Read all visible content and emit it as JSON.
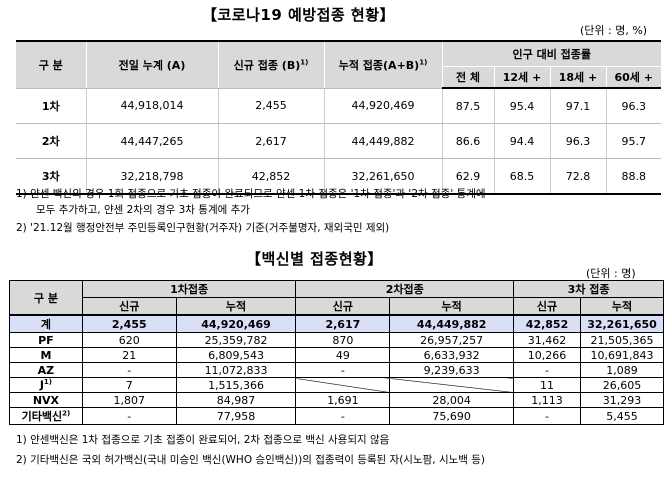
{
  "title1": "【코로나19 예방접종 현황】",
  "unit1": "(단위 : 명, %)",
  "table1": {
    "col_category": "구 분",
    "col_prev": "전일 누계 (A)",
    "col_new": "신규 접종 (B)",
    "col_new_sup": "1)",
    "col_cum": "누적 접종(A+B)",
    "col_cum_sup": "1)",
    "col_ratio": "인구 대비 접종률",
    "sub_all": "전 체",
    "sub_12": "12세 +",
    "sub_18": "18세 +",
    "sub_60": "60세 +",
    "rows": [
      {
        "label": "1차",
        "prev": "44,918,014",
        "new": "2,455",
        "cum": "44,920,469",
        "all": "87.5",
        "a12": "95.4",
        "a18": "97.1",
        "a60": "96.3"
      },
      {
        "label": "2차",
        "prev": "44,447,265",
        "new": "2,617",
        "cum": "44,449,882",
        "all": "86.6",
        "a12": "94.4",
        "a18": "96.3",
        "a60": "95.7"
      },
      {
        "label": "3차",
        "prev": "32,218,798",
        "new": "42,852",
        "cum": "32,261,650",
        "all": "62.9",
        "a12": "68.5",
        "a18": "72.8",
        "a60": "88.8"
      }
    ]
  },
  "notes1": {
    "n1": "1) 얀센 백신의 경우 1회 접종으로 기초 접종이 완료되므로 얀센 1차 접종은 '1차 접종'과 '2차 접종' 통계에",
    "n1b": "모두 추가하고, 얀센 2차의 경우 3차 통계에 추가",
    "n2": "2) '21.12월 행정안전부 주민등록인구현황(거주자) 기준(거주불명자, 재외국민 제외)"
  },
  "title2": "【백신별 접종현황】",
  "unit2": "(단위 : 명)",
  "table2": {
    "col_category": "구 분",
    "dose1": "1차접종",
    "dose2": "2차접종",
    "dose3": "3차 접종",
    "new": "신규",
    "cum": "누적",
    "total": {
      "label": "계",
      "d1n": "2,455",
      "d1c": "44,920,469",
      "d2n": "2,617",
      "d2c": "44,449,882",
      "d3n": "42,852",
      "d3c": "32,261,650"
    },
    "rows": [
      {
        "label": "PF",
        "d1n": "620",
        "d1c": "25,359,782",
        "d2n": "870",
        "d2c": "26,957,257",
        "d3n": "31,462",
        "d3c": "21,505,365"
      },
      {
        "label": "M",
        "d1n": "21",
        "d1c": "6,809,543",
        "d2n": "49",
        "d2c": "6,633,932",
        "d3n": "10,266",
        "d3c": "10,691,843"
      },
      {
        "label": "AZ",
        "d1n": "-",
        "d1c": "11,072,833",
        "d2n": "-",
        "d2c": "9,239,633",
        "d3n": "-",
        "d3c": "1,089"
      },
      {
        "label": "J",
        "sup": "1)",
        "d1n": "7",
        "d1c": "1,515,366",
        "d3n": "11",
        "d3c": "26,605"
      },
      {
        "label": "NVX",
        "d1n": "1,807",
        "d1c": "84,987",
        "d2n": "1,691",
        "d2c": "28,004",
        "d3n": "1,113",
        "d3c": "31,293"
      },
      {
        "label": "기타백신",
        "sup": "2)",
        "d1n": "-",
        "d1c": "77,958",
        "d2n": "-",
        "d2c": "75,690",
        "d3n": "-",
        "d3c": "5,455"
      }
    ]
  },
  "notes2": {
    "n1": "1) 얀센백신은 1차 접종으로 기초 접종이 완료되어, 2차 접종으로 백신 사용되지 않음",
    "n2": "2) 기타백신은 국외 허가백신(국내 미승인 백신(WHO 승인백신))의 접종력이 등록된 자(시노팜, 시노백 등)"
  }
}
